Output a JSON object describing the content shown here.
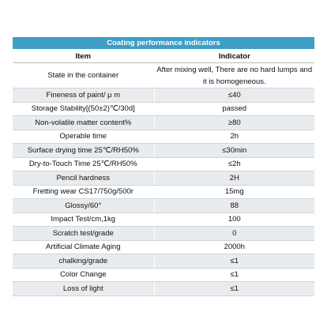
{
  "title": "Coating performance indicators",
  "columns": [
    "Item",
    "Indicator"
  ],
  "rows": [
    {
      "item": "State in the container",
      "indicator": "After mixing well, There are no hard lumps and it is homogeneous."
    },
    {
      "item": "Fineness of paint/ μ m",
      "indicator": "≤40"
    },
    {
      "item": "Storage Stability[(50±2)℃/30d]",
      "indicator": "passed"
    },
    {
      "item": "Non-volatile matter content%",
      "indicator": "≥80"
    },
    {
      "item": "Operable time",
      "indicator": "2h"
    },
    {
      "item": "Surface drying time 25℃/RH50%",
      "indicator": "≤30min"
    },
    {
      "item": "Dry-to-Touch Time 25℃/RH50%",
      "indicator": "≤2h"
    },
    {
      "item": "Pencil hardness",
      "indicator": "2H"
    },
    {
      "item": "Fretting wear CS17/750g/500r",
      "indicator": "15mg"
    },
    {
      "item": "Glossy/60°",
      "indicator": "88"
    },
    {
      "item": "Impact Test/cm,1kg",
      "indicator": "100"
    },
    {
      "item": "Scratch test/grade",
      "indicator": "0"
    },
    {
      "item": "Artificial Climate Aging",
      "indicator": "2000h"
    },
    {
      "item": "chalking/grade",
      "indicator": "≤1"
    },
    {
      "item": "Color Change",
      "indicator": "≤1"
    },
    {
      "item": "Loss of light",
      "indicator": "≤1"
    }
  ]
}
